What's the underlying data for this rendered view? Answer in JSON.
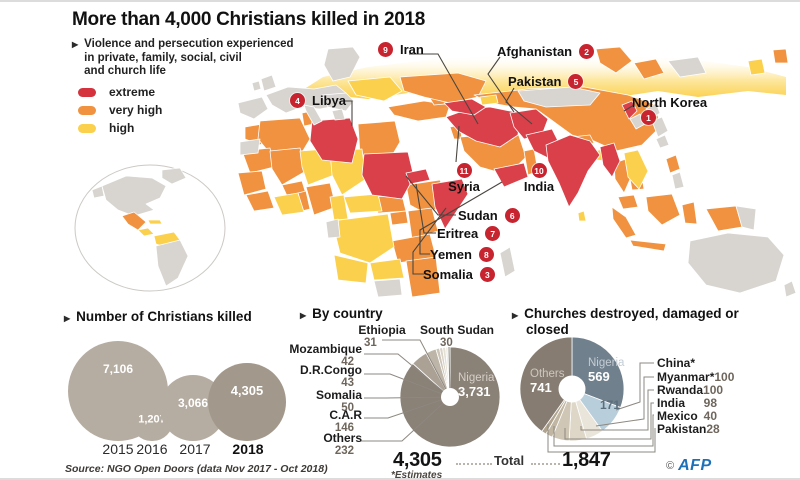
{
  "title": "More than 4,000 Christians killed in 2018",
  "map": {
    "note_line1": "Violence and persecution experienced",
    "note_line2": "in private, family, social, civil",
    "note_line3": "and church life",
    "legend": [
      {
        "label": "extreme",
        "color": "#d4333e"
      },
      {
        "label": "very high",
        "color": "#f0923f"
      },
      {
        "label": "high",
        "color": "#fbd04c"
      }
    ],
    "countries": [
      {
        "rank": "9",
        "name": "Iran"
      },
      {
        "rank": "2",
        "name": "Afghanistan"
      },
      {
        "rank": "5",
        "name": "Pakistan"
      },
      {
        "rank": "1",
        "name": "North Korea"
      },
      {
        "rank": "4",
        "name": "Libya"
      },
      {
        "rank": "11",
        "name": "Syria"
      },
      {
        "rank": "10",
        "name": "India"
      },
      {
        "rank": "6",
        "name": "Sudan"
      },
      {
        "rank": "7",
        "name": "Eritrea"
      },
      {
        "rank": "8",
        "name": "Yemen"
      },
      {
        "rank": "3",
        "name": "Somalia"
      }
    ]
  },
  "killed": {
    "header": "Number of Christians killed",
    "items": [
      {
        "year": "2015",
        "label": "7,106"
      },
      {
        "year": "2016",
        "label": "1,207"
      },
      {
        "year": "2017",
        "label": "3,066"
      },
      {
        "year": "2018",
        "label": "4,305"
      }
    ]
  },
  "by_country": {
    "header": "By country",
    "items": [
      {
        "name": "Ethiopia",
        "value": "31"
      },
      {
        "name": "South Sudan",
        "value": "30"
      },
      {
        "name": "Mozambique",
        "value": "42"
      },
      {
        "name": "D.R.Congo",
        "value": "43"
      },
      {
        "name": "Somalia",
        "value": "50"
      },
      {
        "name": "C.A.R",
        "value": "146"
      },
      {
        "name": "Others",
        "value": "232"
      }
    ],
    "pie_name": "Nigeria",
    "pie_value": "3,731",
    "total": "4,305",
    "estimates_note": "*Estimates"
  },
  "churches": {
    "header_line1": "Churches destroyed, damaged or",
    "header_line2": "closed",
    "items": [
      {
        "name": "China*",
        "value": ""
      },
      {
        "name": "Myanmar*",
        "value": "100"
      },
      {
        "name": "Rwanda",
        "value": "100"
      },
      {
        "name": "India",
        "value": "98"
      },
      {
        "name": "Mexico",
        "value": "40"
      },
      {
        "name": "Pakistan",
        "value": "28"
      }
    ],
    "pie_name": "Nigeria",
    "pie_value": "569",
    "others_name": "Others",
    "others_value": "741",
    "china_slice_label": "171",
    "total": "1,847"
  },
  "total_label": "Total",
  "source": "Source: NGO Open Doors (data Nov 2017 - Oct 2018)",
  "credit": {
    "copyright": "©",
    "brand": "AFP"
  },
  "chart_data": [
    {
      "id": "persecution_map",
      "type": "heatmap",
      "title": "Violence and persecution experienced in private, family, social, civil and church life",
      "levels": [
        "extreme",
        "very high",
        "high"
      ],
      "level_colors": [
        "#d4333e",
        "#f0923f",
        "#fbd04c"
      ],
      "ranking": [
        {
          "rank": 1,
          "country": "North Korea"
        },
        {
          "rank": 2,
          "country": "Afghanistan"
        },
        {
          "rank": 3,
          "country": "Somalia"
        },
        {
          "rank": 4,
          "country": "Libya"
        },
        {
          "rank": 5,
          "country": "Pakistan"
        },
        {
          "rank": 6,
          "country": "Sudan"
        },
        {
          "rank": 7,
          "country": "Eritrea"
        },
        {
          "rank": 8,
          "country": "Yemen"
        },
        {
          "rank": 9,
          "country": "Iran"
        },
        {
          "rank": 10,
          "country": "India"
        },
        {
          "rank": 11,
          "country": "Syria"
        }
      ]
    },
    {
      "id": "killed",
      "type": "bar",
      "subtype": "bubble",
      "title": "Number of Christians killed",
      "categories": [
        "2015",
        "2016",
        "2017",
        "2018"
      ],
      "values": [
        7106,
        1207,
        3066,
        4305
      ]
    },
    {
      "id": "by_country",
      "type": "pie",
      "title": "By country",
      "total": 4305,
      "slices": [
        {
          "label": "Nigeria",
          "value": 3731,
          "color": "#8a8177"
        },
        {
          "label": "Others",
          "value": 232,
          "color": "#aba295"
        },
        {
          "label": "C.A.R",
          "value": 146,
          "color": "#bdb5a8"
        },
        {
          "label": "Somalia",
          "value": 50,
          "color": "#ccc5b8"
        },
        {
          "label": "D.R.Congo",
          "value": 43,
          "color": "#d9d3c7"
        },
        {
          "label": "Mozambique",
          "value": 42,
          "color": "#e4e0d5"
        },
        {
          "label": "Ethiopia",
          "value": 31,
          "color": "#edeae2"
        },
        {
          "label": "South Sudan",
          "value": 30,
          "color": "#f6f4ef"
        }
      ]
    },
    {
      "id": "churches",
      "type": "pie",
      "title": "Churches destroyed, damaged or closed",
      "total": 1847,
      "slices": [
        {
          "label": "Nigeria",
          "value": 569,
          "color": "#71808d"
        },
        {
          "label": "China",
          "value": 171,
          "color": "#b9cedb"
        },
        {
          "label": "Myanmar",
          "value": 100,
          "color": "#eae5da"
        },
        {
          "label": "Rwanda",
          "value": 100,
          "color": "#ded7c8"
        },
        {
          "label": "India",
          "value": 98,
          "color": "#cfc6b5"
        },
        {
          "label": "Mexico",
          "value": 40,
          "color": "#c1b6a2"
        },
        {
          "label": "Pakistan",
          "value": 28,
          "color": "#b1a48e"
        },
        {
          "label": "Others",
          "value": 741,
          "color": "#867c71"
        }
      ]
    }
  ]
}
